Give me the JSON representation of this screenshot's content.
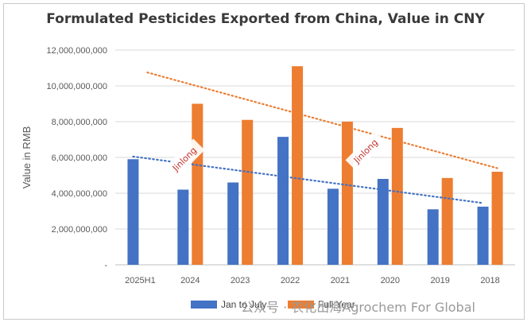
{
  "chart_data": {
    "type": "bar",
    "title": "Formulated Pesticides Exported from China, Value in CNY",
    "xlabel": "",
    "ylabel": "Value in RMB",
    "categories": [
      "2025H1",
      "2024",
      "2023",
      "2022",
      "2021",
      "2020",
      "2019",
      "2018"
    ],
    "series": [
      {
        "name": "Jan to July",
        "color": "#4472c4",
        "values": [
          5900000000,
          4200000000,
          4600000000,
          7150000000,
          4250000000,
          4800000000,
          3100000000,
          3250000000
        ]
      },
      {
        "name": "Full Year",
        "color": "#ed7d31",
        "values": [
          null,
          9000000000,
          8100000000,
          11100000000,
          8000000000,
          7650000000,
          4850000000,
          5200000000
        ]
      }
    ],
    "trendlines": [
      {
        "series": "Jan to July",
        "type": "linear",
        "style": "dotted",
        "color": "#4472c4",
        "start": 6050000000,
        "end": 3450000000
      },
      {
        "series": "Full Year",
        "type": "linear",
        "style": "dotted",
        "color": "#ed7d31",
        "start": 10750000000,
        "end": 5400000000
      }
    ],
    "y_ticks": [
      "-",
      "2,000,000,000",
      "4,000,000,000",
      "6,000,000,000",
      "8,000,000,000",
      "10,000,000,000",
      "12,000,000,000"
    ],
    "ylim": [
      0,
      12000000000
    ],
    "grid": true,
    "legend_position": "bottom"
  },
  "watermarks": {
    "stamp": "Jinlong",
    "footer": "公众号 · 农化出海Agrochem For Global"
  }
}
